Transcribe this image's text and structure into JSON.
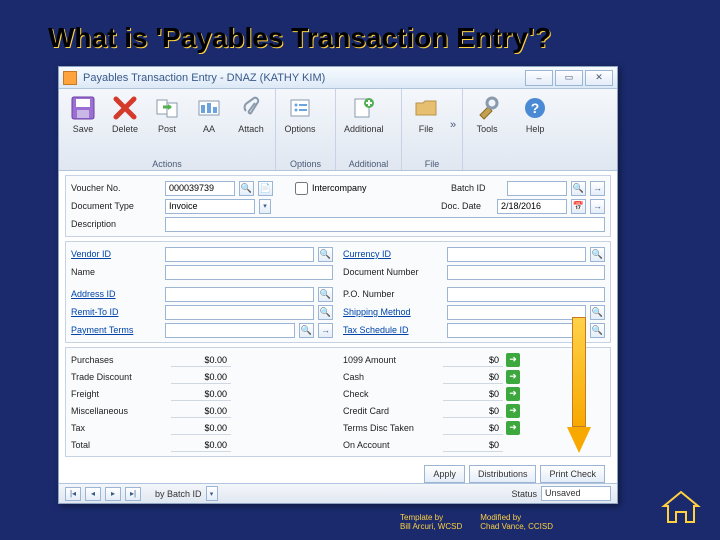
{
  "slide": {
    "title": "What is 'Payables Transaction Entry'?"
  },
  "window": {
    "title": "Payables Transaction Entry  -  DNAZ  (KATHY KIM)",
    "min": "–",
    "max": "▭",
    "close": "✕"
  },
  "ribbon": {
    "actions": {
      "label": "Actions",
      "save": "Save",
      "delete": "Delete",
      "post": "Post",
      "aa": "AA",
      "attach": "Attach"
    },
    "options": {
      "label": "Options",
      "options": "Options"
    },
    "additional": {
      "label": "Additional",
      "additional": "Additional"
    },
    "file": {
      "label": "File",
      "file": "File",
      "chev": "»"
    },
    "tools": {
      "label": "",
      "tools": "Tools"
    },
    "help": {
      "label": "",
      "help": "Help"
    }
  },
  "form": {
    "voucher_no_label": "Voucher No.",
    "voucher_no": "000039739",
    "intercompany_label": "Intercompany",
    "batch_id_label": "Batch ID",
    "document_type_label": "Document Type",
    "document_type": "Invoice",
    "doc_date_label": "Doc. Date",
    "doc_date": "2/18/2016",
    "description_label": "Description",
    "vendor_id_label": "Vendor ID",
    "name_label": "Name",
    "currency_id_label": "Currency ID",
    "document_number_label": "Document Number",
    "address_id_label": "Address ID",
    "remit_to_id_label": "Remit-To ID",
    "payment_terms_label": "Payment Terms",
    "po_number_label": "P.O. Number",
    "shipping_method_label": "Shipping Method",
    "tax_schedule_id_label": "Tax Schedule ID"
  },
  "amounts": {
    "left": [
      {
        "label": "Purchases",
        "value": "$0.00"
      },
      {
        "label": "Trade Discount",
        "value": "$0.00"
      },
      {
        "label": "Freight",
        "value": "$0.00"
      },
      {
        "label": "Miscellaneous",
        "value": "$0.00"
      },
      {
        "label": "Tax",
        "value": "$0.00"
      },
      {
        "label": "Total",
        "value": "$0.00"
      }
    ],
    "right": [
      {
        "label": "1099 Amount",
        "value": "$0",
        "go": true
      },
      {
        "label": "Cash",
        "value": "$0",
        "go": true
      },
      {
        "label": "Check",
        "value": "$0",
        "go": true
      },
      {
        "label": "Credit Card",
        "value": "$0",
        "go": true
      },
      {
        "label": "Terms Disc Taken",
        "value": "$0",
        "go": true
      },
      {
        "label": "On Account",
        "value": "$0"
      }
    ]
  },
  "buttons": {
    "apply": "Apply",
    "distributions": "Distributions",
    "print_check": "Print Check"
  },
  "status": {
    "by": "by Batch ID",
    "status_label": "Status",
    "status_value": "Unsaved"
  },
  "credits": {
    "template_by_label": "Template by",
    "template_by": "Bill Arcuri, WCSD",
    "modified_by_label": "Modified by",
    "modified_by": "Chad Vance, CCISD"
  },
  "colors": {
    "slide_bg": "#1a2a6c",
    "accent": "#ffd040",
    "arrow": "#f7a900",
    "go": "#3da83d"
  }
}
